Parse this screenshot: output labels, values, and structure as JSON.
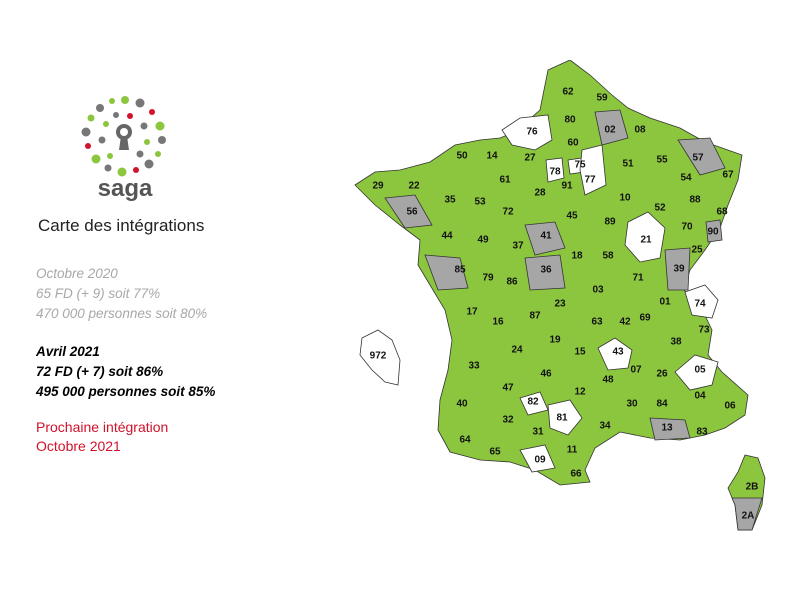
{
  "logo": {
    "wordmark": "saga"
  },
  "subtitle": "Carte des intégrations",
  "status_blocks": {
    "octobre_2020": [
      "Octobre 2020",
      "65 FD (+ 9) soit 77%",
      "470 000 personnes soit 80%"
    ],
    "avril_2021": [
      "Avril 2021",
      "72 FD (+ 7) soit 86%",
      "495 000 personnes soit 85%"
    ]
  },
  "next_integration": [
    "Prochaine intégration",
    "Octobre 2021"
  ],
  "colors": {
    "integrated": "#8cc63f",
    "next": "#a6a6a6",
    "not_integrated": "#ffffff",
    "accent_red": "#d0122b"
  },
  "departments": {
    "integrated": [
      "01",
      "03",
      "04",
      "06",
      "07",
      "08",
      "10",
      "11",
      "12",
      "14",
      "15",
      "16",
      "17",
      "18",
      "19",
      "22",
      "23",
      "24",
      "25",
      "26",
      "27",
      "28",
      "29",
      "30",
      "31",
      "32",
      "33",
      "34",
      "35",
      "37",
      "38",
      "40",
      "42",
      "44",
      "45",
      "46",
      "47",
      "48",
      "49",
      "50",
      "51",
      "52",
      "53",
      "54",
      "55",
      "58",
      "59",
      "60",
      "61",
      "62",
      "63",
      "64",
      "65",
      "66",
      "67",
      "68",
      "69",
      "70",
      "71",
      "72",
      "73",
      "79",
      "80",
      "83",
      "84",
      "86",
      "87",
      "88",
      "89",
      "91",
      "2B"
    ],
    "next": [
      "02",
      "13",
      "36",
      "39",
      "41",
      "56",
      "57",
      "85",
      "90",
      "2A"
    ],
    "not_integrated": [
      "05",
      "09",
      "21",
      "43",
      "74",
      "75",
      "76",
      "77",
      "78",
      "81",
      "82",
      "972"
    ]
  }
}
